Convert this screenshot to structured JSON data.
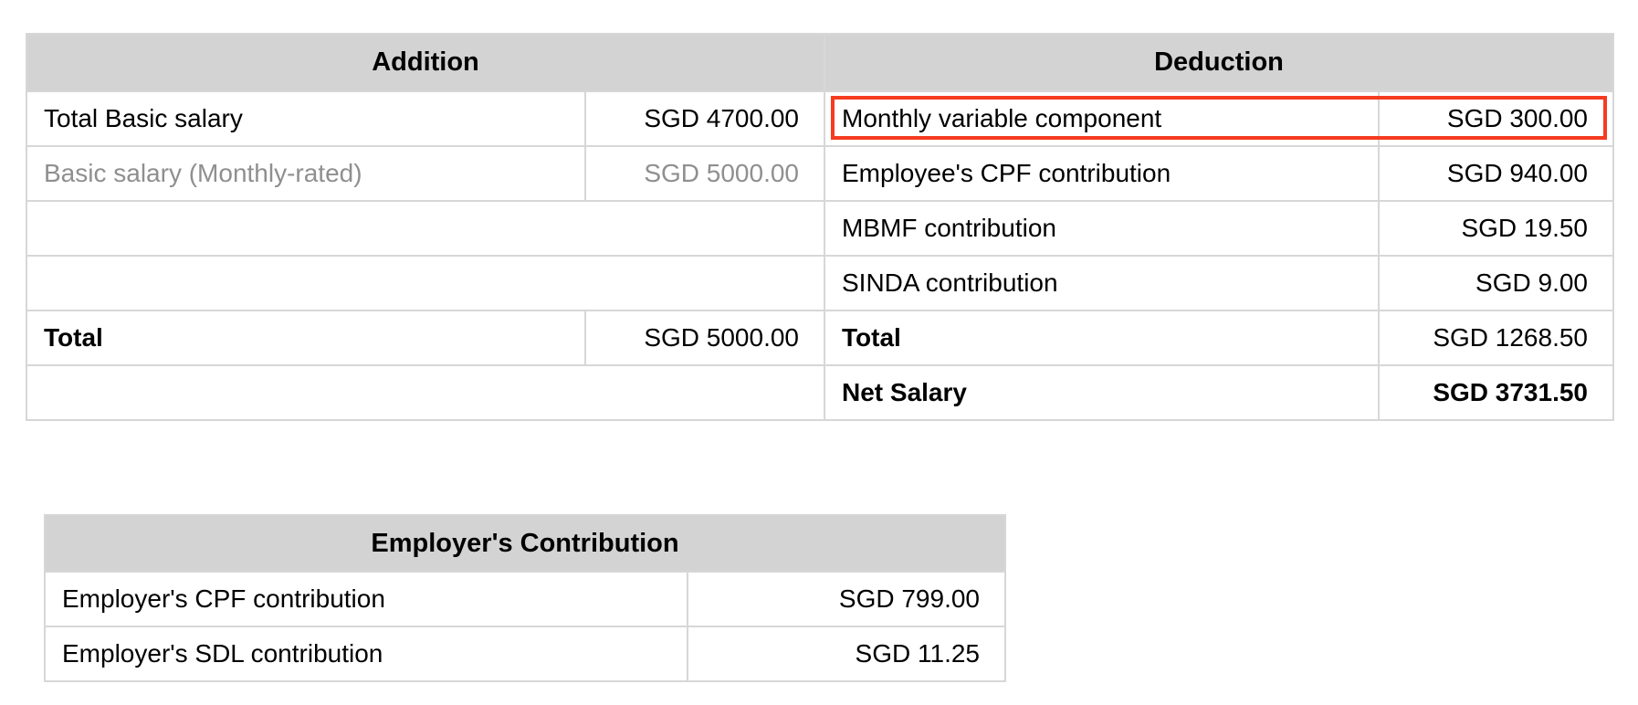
{
  "salary_table": {
    "addition": {
      "header": "Addition",
      "rows": [
        {
          "label": "Total Basic salary",
          "amount": "SGD 4700.00"
        },
        {
          "label": "Basic salary (Monthly-rated)",
          "amount": "SGD 5000.00"
        },
        {
          "label": "",
          "amount": ""
        },
        {
          "label": "",
          "amount": ""
        },
        {
          "label": "Total",
          "amount": "SGD 5000.00"
        },
        {
          "label": "",
          "amount": ""
        }
      ]
    },
    "deduction": {
      "header": "Deduction",
      "rows": [
        {
          "label": "Monthly variable component",
          "amount": "SGD 300.00",
          "highlighted": true
        },
        {
          "label": "Employee's CPF contribution",
          "amount": "SGD 940.00"
        },
        {
          "label": "MBMF contribution",
          "amount": "SGD 19.50"
        },
        {
          "label": "SINDA contribution",
          "amount": "SGD 9.00"
        },
        {
          "label": "Total",
          "amount": "SGD 1268.50"
        },
        {
          "label": "Net Salary",
          "amount": "SGD 3731.50"
        }
      ]
    }
  },
  "employer_table": {
    "header": "Employer's Contribution",
    "rows": [
      {
        "label": "Employer's CPF contribution",
        "amount": "SGD 799.00"
      },
      {
        "label": "Employer's SDL contribution",
        "amount": "SGD 11.25"
      }
    ]
  },
  "colors": {
    "highlight_border": "#f53b20",
    "header_background": "#d3d3d3",
    "table_border": "#d7d7d7",
    "muted_text": "#8f8f8f"
  }
}
